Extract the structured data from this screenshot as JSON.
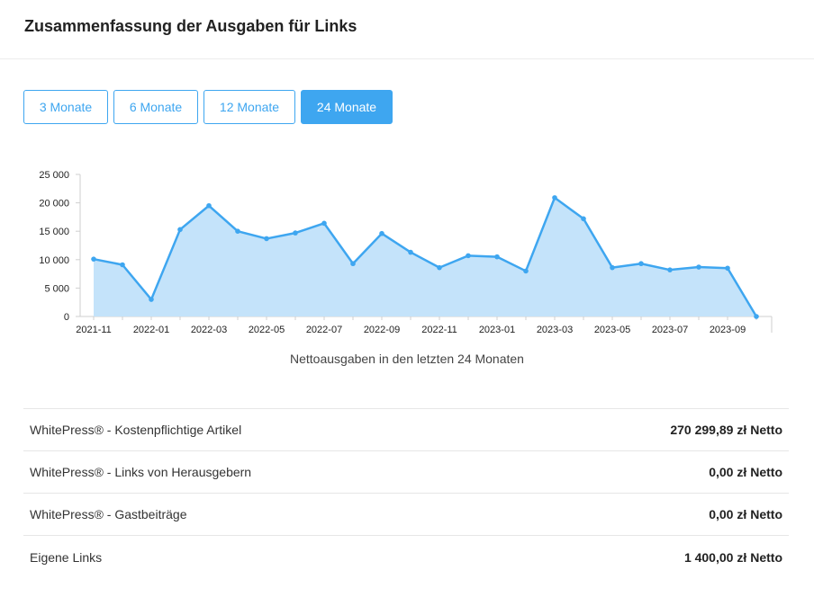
{
  "page": {
    "title": "Zusammenfassung der Ausgaben für Links"
  },
  "range_buttons": [
    {
      "label": "3 Monate",
      "active": false
    },
    {
      "label": "6 Monate",
      "active": false
    },
    {
      "label": "12 Monate",
      "active": false
    },
    {
      "label": "24 Monate",
      "active": true
    }
  ],
  "chart_data": {
    "type": "area",
    "title": "",
    "caption": "Nettoausgaben in den letzten 24 Monaten",
    "x": [
      "2021-11",
      "2021-12",
      "2022-01",
      "2022-02",
      "2022-03",
      "2022-04",
      "2022-05",
      "2022-06",
      "2022-07",
      "2022-08",
      "2022-09",
      "2022-10",
      "2022-11",
      "2022-12",
      "2023-01",
      "2023-02",
      "2023-03",
      "2023-04",
      "2023-05",
      "2023-06",
      "2023-07",
      "2023-08",
      "2023-09",
      "2023-10"
    ],
    "x_tick_labels": [
      "2021-11",
      "2022-01",
      "2022-03",
      "2022-05",
      "2022-07",
      "2022-09",
      "2022-11",
      "2023-01",
      "2023-03",
      "2023-05",
      "2023-07",
      "2023-09"
    ],
    "values": [
      10100,
      9100,
      3000,
      15300,
      19500,
      15000,
      13700,
      14700,
      16400,
      9300,
      14600,
      11300,
      8600,
      10700,
      10500,
      8000,
      20900,
      17200,
      8600,
      9300,
      8200,
      8700,
      8500,
      0
    ],
    "ylim": [
      0,
      25000
    ],
    "y_ticks": [
      "0",
      "5 000",
      "10 000",
      "15 000",
      "20 000",
      "25 000"
    ],
    "y_tick_values": [
      0,
      5000,
      10000,
      15000,
      20000,
      25000
    ],
    "grid": false,
    "colors": {
      "line": "#3ea6f0",
      "fill": "#c4e3fa"
    }
  },
  "summary": {
    "rows": [
      {
        "label": "WhitePress® - Kostenpflichtige Artikel",
        "amount": "270 299,89 zł",
        "unit": "Netto"
      },
      {
        "label": "WhitePress® - Links von Herausgebern",
        "amount": "0,00 zł",
        "unit": "Netto"
      },
      {
        "label": "WhitePress® - Gastbeiträge",
        "amount": "0,00 zł",
        "unit": "Netto"
      },
      {
        "label": "Eigene Links",
        "amount": "1 400,00 zł",
        "unit": "Netto"
      }
    ]
  }
}
